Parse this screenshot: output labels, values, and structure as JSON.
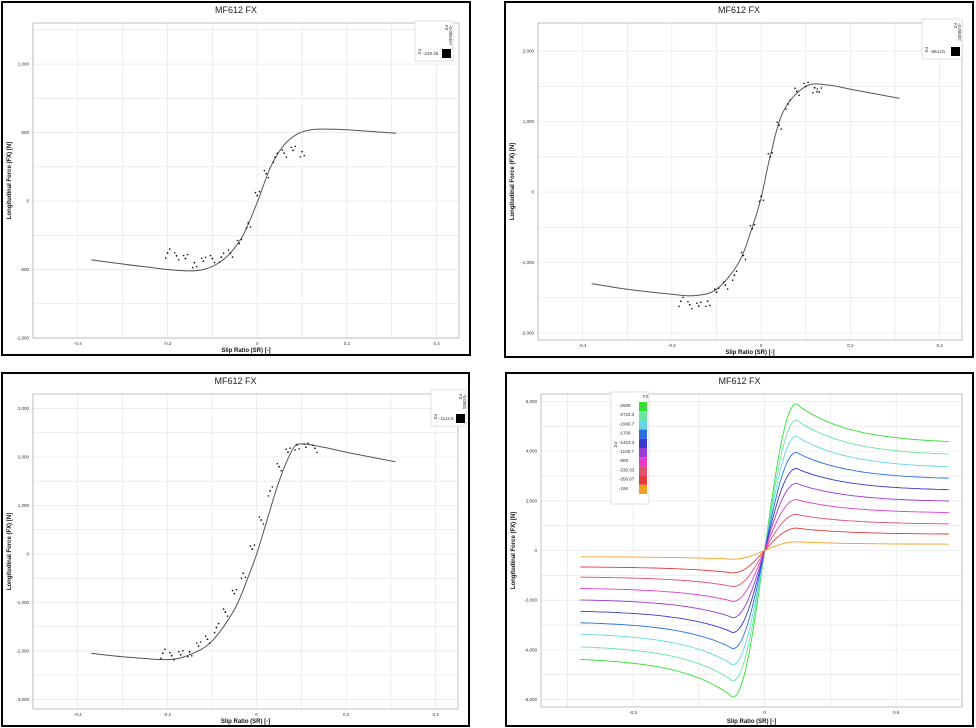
{
  "charts": [
    {
      "title": "MF612 FX",
      "xlabel": "Slip Ratio (SR) [-]",
      "ylabel": "Longitudinal Force (FX) [N]",
      "xticks": [
        "-0.4",
        "-0.2",
        "0",
        "0.2",
        "0.4"
      ],
      "yticks": [
        "1,000",
        "500",
        "0",
        "-500",
        "-1,000"
      ],
      "legend_header": "FZ",
      "legend_value": "-219.45",
      "legend_code": "-0.005467"
    },
    {
      "title": "MF612 FX",
      "xlabel": "Slip Ratio (SR) [-]",
      "ylabel": "Longitudinal Force (FX) [N]",
      "xticks": [
        "-0.4",
        "-0.2",
        "0",
        "0.2",
        "0.4"
      ],
      "yticks": [
        "2,000",
        "1,000",
        "0",
        "-1,000",
        "-2,000"
      ],
      "legend_header": "FZ",
      "legend_value": "-664.01",
      "legend_code": "-0.00002"
    },
    {
      "title": "MF612 FX",
      "xlabel": "Slip Ratio (SR) [-]",
      "ylabel": "Longitudinal Force (FX) [N]",
      "xticks": [
        "-0.4",
        "-0.2",
        "0",
        "0.2",
        "0.4"
      ],
      "yticks": [
        "3,000",
        "2,000",
        "1,000",
        "0",
        "-1,000",
        "-2,000",
        "-3,000"
      ],
      "legend_header": "FZ",
      "legend_value": "-1112.5",
      "legend_code": "-0.0001"
    },
    {
      "title": "MF612 FX",
      "xlabel": "Slip Ratio (SR) [-]",
      "ylabel": "Longitudinal Force (FX) [N]",
      "xticks": [
        "-0.5",
        "0",
        "0.5"
      ],
      "yticks": [
        "6,000",
        "4,000",
        "2,000",
        "0",
        "-2,000",
        "-4,000",
        "-6,000"
      ],
      "legend_header": "FZ",
      "legend_entries": [
        "-2509",
        "-2723.3",
        "-1966.7",
        "-1709",
        "-1403.3",
        "-1100.7",
        "-800",
        "-530.33",
        "-356.67",
        "-186"
      ],
      "legend_colors": [
        "#33dd33",
        "#66e6a0",
        "#66d6e6",
        "#2b6fe0",
        "#3a3ad0",
        "#9a3ad0",
        "#e03ad0",
        "#e05070",
        "#e03a3a",
        "#f0a020"
      ]
    }
  ],
  "chart_data": [
    {
      "type": "scatter",
      "title": "MF612 FX",
      "xlabel": "Slip Ratio (SR) [-]",
      "ylabel": "Longitudinal Force (FX) [N]",
      "xlim": [
        -0.5,
        0.45
      ],
      "ylim": [
        -1000,
        1300
      ],
      "series": [
        {
          "name": "-219.45",
          "kind": "fit-line",
          "x": [
            -0.37,
            -0.3,
            -0.25,
            -0.2,
            -0.15,
            -0.12,
            -0.09,
            -0.06,
            -0.03,
            0,
            0.03,
            0.06,
            0.09,
            0.12,
            0.15,
            0.2,
            0.31
          ],
          "y": [
            -430,
            -460,
            -480,
            -500,
            -510,
            -500,
            -460,
            -380,
            -240,
            -10,
            250,
            410,
            490,
            520,
            525,
            520,
            495
          ]
        },
        {
          "name": "-219.45",
          "kind": "measured",
          "x": [
            -0.2,
            -0.18,
            -0.16,
            -0.14,
            -0.12,
            -0.1,
            -0.08,
            -0.06,
            -0.04,
            -0.02,
            0,
            0.02,
            0.04,
            0.06,
            0.08,
            0.1
          ],
          "y": [
            -380,
            -400,
            -420,
            -450,
            -440,
            -420,
            -410,
            -380,
            -310,
            -160,
            40,
            200,
            320,
            350,
            370,
            360
          ]
        }
      ]
    },
    {
      "type": "scatter",
      "title": "MF612 FX",
      "xlabel": "Slip Ratio (SR) [-]",
      "ylabel": "Longitudinal Force (FX) [N]",
      "xlim": [
        -0.5,
        0.45
      ],
      "ylim": [
        -2100,
        2400
      ],
      "series": [
        {
          "name": "-664.01",
          "kind": "fit-line",
          "x": [
            -0.38,
            -0.3,
            -0.2,
            -0.15,
            -0.1,
            -0.05,
            -0.02,
            0,
            0.02,
            0.05,
            0.1,
            0.15,
            0.2,
            0.31
          ],
          "y": [
            -1300,
            -1380,
            -1450,
            -1470,
            -1380,
            -1000,
            -500,
            -80,
            500,
            1150,
            1500,
            1520,
            1460,
            1330
          ]
        },
        {
          "name": "-664.01",
          "kind": "measured",
          "x": [
            -0.18,
            -0.16,
            -0.14,
            -0.12,
            -0.1,
            -0.08,
            -0.06,
            -0.04,
            -0.02,
            0,
            0.02,
            0.04,
            0.06,
            0.08,
            0.1,
            0.12,
            0.13
          ],
          "y": [
            -1550,
            -1600,
            -1620,
            -1550,
            -1420,
            -1320,
            -1180,
            -900,
            -520,
            -60,
            500,
            950,
            1250,
            1430,
            1500,
            1480,
            1420
          ]
        }
      ]
    },
    {
      "type": "scatter",
      "title": "MF612 FX",
      "xlabel": "Slip Ratio (SR) [-]",
      "ylabel": "Longitudinal Force (FX) [N]",
      "xlim": [
        -0.5,
        0.45
      ],
      "ylim": [
        -3200,
        3300
      ],
      "series": [
        {
          "name": "-1112.5",
          "kind": "fit-line",
          "x": [
            -0.37,
            -0.3,
            -0.2,
            -0.15,
            -0.1,
            -0.05,
            -0.02,
            0,
            0.02,
            0.05,
            0.08,
            0.1,
            0.15,
            0.2,
            0.31
          ],
          "y": [
            -2050,
            -2120,
            -2180,
            -2080,
            -1800,
            -1150,
            -500,
            0,
            600,
            1500,
            2150,
            2270,
            2200,
            2100,
            1900
          ]
        },
        {
          "name": "-1112.5",
          "kind": "measured",
          "x": [
            -0.21,
            -0.19,
            -0.17,
            -0.15,
            -0.13,
            -0.11,
            -0.09,
            -0.07,
            -0.05,
            -0.03,
            -0.01,
            0.01,
            0.03,
            0.05,
            0.07,
            0.09,
            0.11,
            0.13
          ],
          "y": [
            -2050,
            -2100,
            -2080,
            -2020,
            -1900,
            -1760,
            -1520,
            -1200,
            -820,
            -400,
            100,
            700,
            1300,
            1800,
            2100,
            2250,
            2200,
            2180
          ]
        }
      ]
    },
    {
      "type": "line",
      "title": "MF612 FX",
      "xlabel": "Slip Ratio (SR) [-]",
      "ylabel": "Longitudinal Force (FX) [N]",
      "xlim": [
        -0.85,
        0.75
      ],
      "ylim": [
        -6300,
        6300
      ],
      "series": [
        {
          "name": "-2509",
          "peak": 5900,
          "tail": 4300
        },
        {
          "name": "-2723.3",
          "peak": 5250,
          "tail": 3800
        },
        {
          "name": "-1966.7",
          "peak": 4600,
          "tail": 3300
        },
        {
          "name": "-1709",
          "peak": 3950,
          "tail": 2850
        },
        {
          "name": "-1403.3",
          "peak": 3300,
          "tail": 2400
        },
        {
          "name": "-1100.7",
          "peak": 2700,
          "tail": 1950
        },
        {
          "name": "-800",
          "peak": 2050,
          "tail": 1500
        },
        {
          "name": "-530.33",
          "peak": 1450,
          "tail": 1050
        },
        {
          "name": "-356.67",
          "peak": 900,
          "tail": 650
        },
        {
          "name": "-186",
          "peak": 350,
          "tail": 250
        }
      ]
    }
  ]
}
